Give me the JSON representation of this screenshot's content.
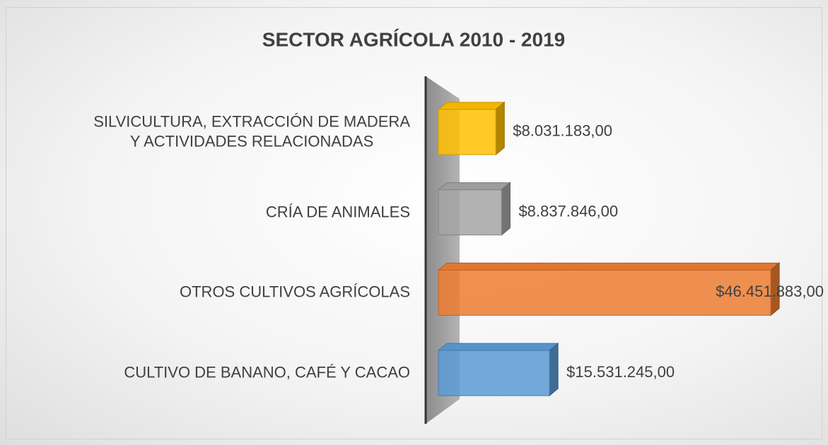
{
  "chart_data": {
    "type": "bar3d",
    "title": "SECTOR AGRÍCOLA 2010 - 2019",
    "categories": [
      "SILVICULTURA, EXTRACCIÓN DE MADERA\nY ACTIVIDADES RELACIONADAS",
      "CRÍA DE ANIMALES",
      "OTROS CULTIVOS AGRÍCOLAS",
      "CULTIVO DE BANANO, CAFÉ Y CACAO"
    ],
    "values": [
      8031183,
      8837846,
      46451883,
      15531245
    ],
    "value_labels": [
      "$8.031.183,00",
      "$8.837.846,00",
      "$46.451.883,00",
      "$15.531.245,00"
    ],
    "colors": [
      "#ffc000",
      "#a5a5a5",
      "#ed7d31",
      "#5b9bd5"
    ],
    "xlim": [
      0,
      50000000
    ]
  }
}
